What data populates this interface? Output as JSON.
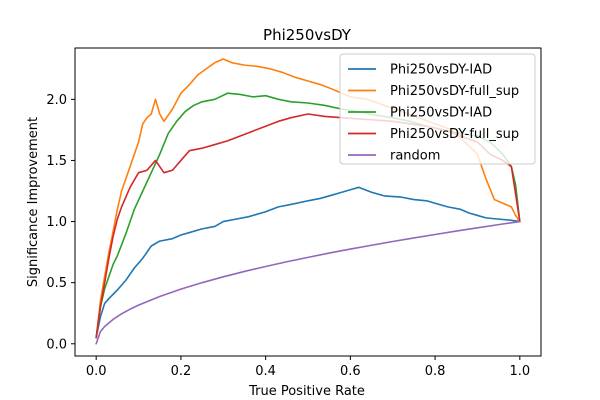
{
  "chart_data": {
    "type": "line",
    "title": "Phi250vsDY",
    "xlabel": "True Positive Rate",
    "ylabel": "Significance Improvement",
    "xlim": [
      -0.05,
      1.05
    ],
    "ylim": [
      -0.1,
      2.42
    ],
    "xticks": [
      0.0,
      0.2,
      0.4,
      0.6,
      0.8,
      1.0
    ],
    "xtick_labels": [
      "0.0",
      "0.2",
      "0.4",
      "0.6",
      "0.8",
      "1.0"
    ],
    "yticks": [
      0.0,
      0.5,
      1.0,
      1.5,
      2.0
    ],
    "ytick_labels": [
      "0.0",
      "0.5",
      "1.0",
      "1.5",
      "2.0"
    ],
    "grid": false,
    "legend_position": "top-right",
    "series": [
      {
        "name": "Phi250vsDY-IAD",
        "color": "#1f77b4",
        "x": [
          0.0,
          0.01,
          0.02,
          0.03,
          0.05,
          0.07,
          0.09,
          0.11,
          0.13,
          0.15,
          0.18,
          0.2,
          0.22,
          0.25,
          0.28,
          0.3,
          0.33,
          0.36,
          0.4,
          0.43,
          0.46,
          0.5,
          0.53,
          0.56,
          0.58,
          0.6,
          0.62,
          0.65,
          0.68,
          0.72,
          0.75,
          0.78,
          0.8,
          0.83,
          0.86,
          0.88,
          0.9,
          0.92,
          0.95,
          0.98,
          1.0
        ],
        "y": [
          0.05,
          0.22,
          0.33,
          0.37,
          0.44,
          0.52,
          0.62,
          0.7,
          0.8,
          0.84,
          0.86,
          0.89,
          0.91,
          0.94,
          0.96,
          1.0,
          1.02,
          1.04,
          1.08,
          1.12,
          1.14,
          1.17,
          1.19,
          1.22,
          1.24,
          1.26,
          1.28,
          1.24,
          1.21,
          1.2,
          1.18,
          1.17,
          1.15,
          1.12,
          1.1,
          1.07,
          1.05,
          1.03,
          1.02,
          1.01,
          1.0
        ]
      },
      {
        "name": "Phi250vsDY-full_sup",
        "color": "#ff7f0e",
        "x": [
          0.0,
          0.01,
          0.02,
          0.03,
          0.04,
          0.05,
          0.06,
          0.08,
          0.1,
          0.11,
          0.12,
          0.13,
          0.14,
          0.15,
          0.16,
          0.18,
          0.2,
          0.22,
          0.24,
          0.26,
          0.28,
          0.3,
          0.32,
          0.35,
          0.38,
          0.41,
          0.44,
          0.47,
          0.5,
          0.53,
          0.56,
          0.6,
          0.64,
          0.68,
          0.72,
          0.76,
          0.8,
          0.84,
          0.87,
          0.9,
          0.92,
          0.94,
          0.96,
          0.98,
          0.99,
          1.0
        ],
        "y": [
          0.05,
          0.35,
          0.55,
          0.75,
          0.92,
          1.1,
          1.25,
          1.45,
          1.65,
          1.8,
          1.85,
          1.88,
          2.0,
          1.88,
          1.82,
          1.92,
          2.05,
          2.12,
          2.2,
          2.25,
          2.3,
          2.33,
          2.3,
          2.28,
          2.27,
          2.25,
          2.22,
          2.18,
          2.15,
          2.12,
          2.08,
          2.02,
          2.0,
          1.95,
          1.9,
          1.85,
          1.8,
          1.75,
          1.65,
          1.55,
          1.35,
          1.18,
          1.15,
          1.12,
          1.05,
          1.0
        ]
      },
      {
        "name": "Phi250vsDY-IAD",
        "color": "#2ca02c",
        "x": [
          0.0,
          0.01,
          0.02,
          0.03,
          0.04,
          0.05,
          0.07,
          0.09,
          0.11,
          0.13,
          0.15,
          0.17,
          0.19,
          0.21,
          0.23,
          0.25,
          0.28,
          0.31,
          0.34,
          0.37,
          0.4,
          0.43,
          0.46,
          0.5,
          0.54,
          0.58,
          0.62,
          0.66,
          0.7,
          0.74,
          0.78,
          0.82,
          0.86,
          0.9,
          0.93,
          0.96,
          0.98,
          0.99,
          1.0
        ],
        "y": [
          0.05,
          0.3,
          0.45,
          0.55,
          0.65,
          0.72,
          0.9,
          1.1,
          1.25,
          1.4,
          1.55,
          1.72,
          1.82,
          1.9,
          1.95,
          1.98,
          2.0,
          2.05,
          2.04,
          2.02,
          2.03,
          2.0,
          1.98,
          1.97,
          1.95,
          1.92,
          1.9,
          1.87,
          1.85,
          1.82,
          1.78,
          1.75,
          1.72,
          1.7,
          1.65,
          1.55,
          1.45,
          1.3,
          1.0
        ]
      },
      {
        "name": "Phi250vsDY-full_sup",
        "color": "#d62728",
        "x": [
          0.0,
          0.01,
          0.02,
          0.03,
          0.04,
          0.05,
          0.06,
          0.08,
          0.1,
          0.12,
          0.14,
          0.16,
          0.18,
          0.2,
          0.22,
          0.25,
          0.28,
          0.31,
          0.34,
          0.37,
          0.4,
          0.43,
          0.46,
          0.5,
          0.54,
          0.58,
          0.62,
          0.66,
          0.7,
          0.74,
          0.78,
          0.82,
          0.86,
          0.9,
          0.93,
          0.96,
          0.98,
          1.0
        ],
        "y": [
          0.05,
          0.3,
          0.5,
          0.7,
          0.88,
          1.02,
          1.12,
          1.28,
          1.4,
          1.42,
          1.5,
          1.4,
          1.42,
          1.5,
          1.58,
          1.6,
          1.63,
          1.66,
          1.7,
          1.74,
          1.78,
          1.82,
          1.85,
          1.88,
          1.86,
          1.85,
          1.84,
          1.83,
          1.82,
          1.8,
          1.78,
          1.75,
          1.7,
          1.65,
          1.55,
          1.5,
          1.45,
          1.0
        ]
      },
      {
        "name": "random",
        "color": "#9467bd",
        "function": "sqrt",
        "x": [
          0.0,
          0.01,
          0.02,
          0.04,
          0.06,
          0.08,
          0.1,
          0.15,
          0.2,
          0.25,
          0.3,
          0.35,
          0.4,
          0.45,
          0.5,
          0.55,
          0.6,
          0.65,
          0.7,
          0.75,
          0.8,
          0.85,
          0.9,
          0.95,
          1.0
        ],
        "y": [
          0.0,
          0.1,
          0.141,
          0.2,
          0.245,
          0.283,
          0.316,
          0.387,
          0.447,
          0.5,
          0.548,
          0.592,
          0.632,
          0.671,
          0.707,
          0.742,
          0.775,
          0.806,
          0.837,
          0.866,
          0.894,
          0.922,
          0.949,
          0.975,
          1.0
        ]
      }
    ]
  }
}
